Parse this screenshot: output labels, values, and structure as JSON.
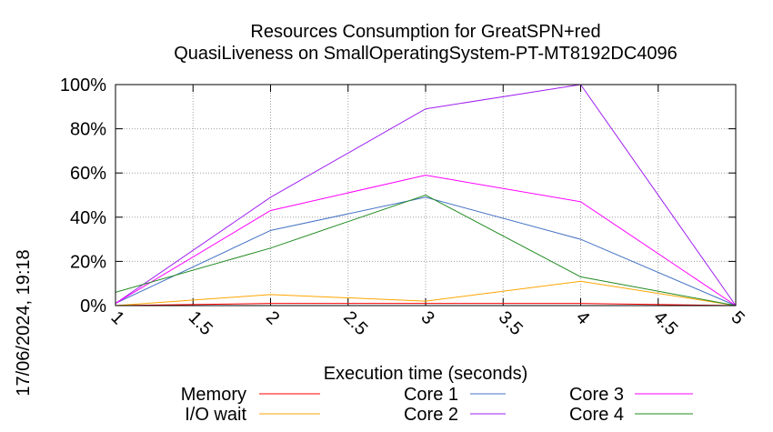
{
  "chart_data": {
    "type": "line",
    "title": "Resources Consumption for GreatSPN+red",
    "subtitle": "QuasiLiveness on SmallOperatingSystem-PT-MT8192DC4096",
    "xlabel": "Execution time (seconds)",
    "ylabel": "",
    "timestamp": "17/06/2024, 19:18",
    "x": [
      1,
      2,
      3,
      4,
      5
    ],
    "xlim": [
      1,
      5
    ],
    "ylim": [
      0,
      100
    ],
    "x_ticks": [
      "1",
      "1.5",
      "2",
      "2.5",
      "3",
      "3.5",
      "4",
      "4.5",
      "5"
    ],
    "y_ticks": [
      "0%",
      "20%",
      "40%",
      "60%",
      "80%",
      "100%"
    ],
    "grid": true,
    "legend_position": "bottom",
    "series": [
      {
        "name": "Memory",
        "color": "#ff0000",
        "values": [
          0,
          1,
          1,
          1,
          0
        ]
      },
      {
        "name": "I/O wait",
        "color": "#ffa500",
        "values": [
          0,
          5,
          2,
          11,
          0
        ]
      },
      {
        "name": "Core 1",
        "color": "#4472c4",
        "values": [
          1,
          34,
          49,
          30,
          0
        ]
      },
      {
        "name": "Core 2",
        "color": "#a020f0",
        "values": [
          1,
          49,
          89,
          100,
          0
        ]
      },
      {
        "name": "Core 3",
        "color": "#ff00ff",
        "values": [
          1,
          43,
          59,
          47,
          0
        ]
      },
      {
        "name": "Core 4",
        "color": "#228b22",
        "values": [
          6,
          26,
          50,
          13,
          0
        ]
      }
    ]
  }
}
